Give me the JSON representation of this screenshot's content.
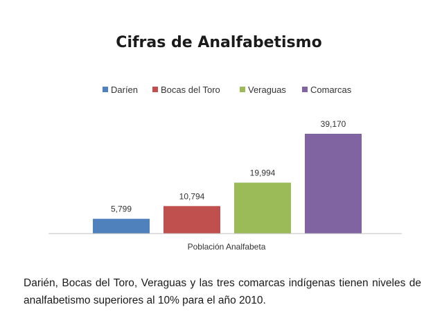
{
  "chart_data": {
    "type": "bar",
    "title": "Cifras de Analfabetismo",
    "xlabel": "Población Analfabeta",
    "ylabel": "",
    "categories": [
      "Población Analfabeta"
    ],
    "series": [
      {
        "name": "Daríen",
        "values": [
          5799
        ],
        "label": "5,799",
        "color": "#4f81bd"
      },
      {
        "name": "Bocas del Toro",
        "values": [
          10794
        ],
        "label": "10,794",
        "color": "#c0504d"
      },
      {
        "name": "Veraguas",
        "values": [
          19994
        ],
        "label": "19,994",
        "color": "#9bbb59"
      },
      {
        "name": "Comarcas",
        "values": [
          39170
        ],
        "label": "39,170",
        "color": "#8064a2"
      }
    ],
    "ylim": [
      0,
      39170
    ],
    "grid": false,
    "legend": "top"
  },
  "caption": "Darién, Bocas del Toro, Veraguas y las tres comarcas indígenas tienen niveles de analfabetismo superiores al 10% para el año 2010."
}
